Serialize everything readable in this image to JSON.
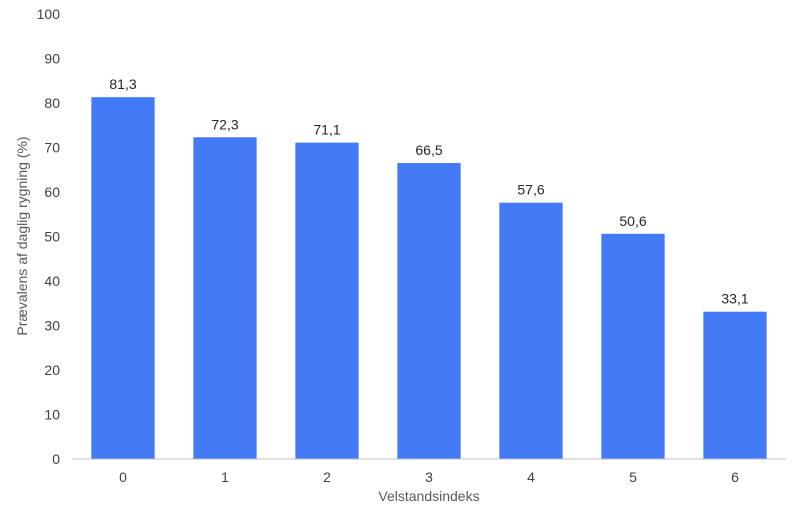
{
  "chart_data": {
    "type": "bar",
    "categories": [
      "0",
      "1",
      "2",
      "3",
      "4",
      "5",
      "6"
    ],
    "values": [
      81.3,
      72.3,
      71.1,
      66.5,
      57.6,
      50.6,
      33.1
    ],
    "value_labels": [
      "81,3",
      "72,3",
      "71,1",
      "66,5",
      "57,6",
      "50,6",
      "33,1"
    ],
    "title": "",
    "xlabel": "Velstandsindeks",
    "ylabel": "Prævalens af daglig rygning (%)",
    "ylim": [
      0,
      100
    ],
    "yticks": [
      "0",
      "10",
      "20",
      "30",
      "40",
      "50",
      "60",
      "70",
      "80",
      "90",
      "100"
    ],
    "bar_color": "#4279f4",
    "axis_color": "#bfbfbf",
    "grid": false,
    "legend": "none"
  }
}
